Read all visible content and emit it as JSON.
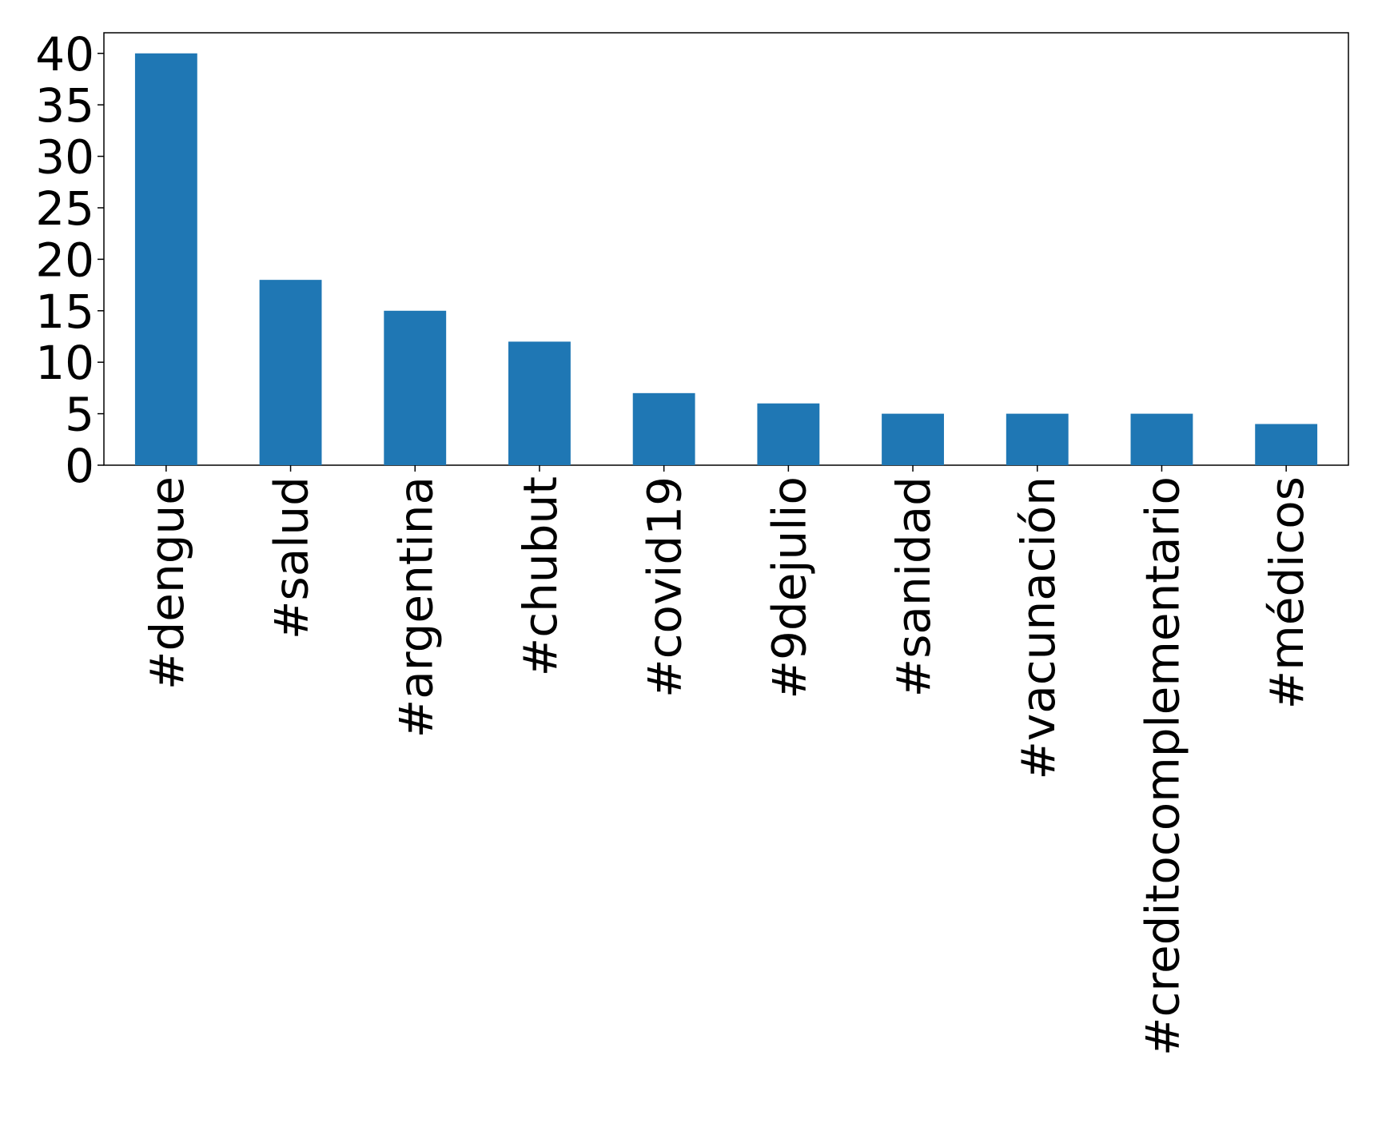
{
  "chart_data": {
    "type": "bar",
    "categories": [
      "#dengue",
      "#salud",
      "#argentina",
      "#chubut",
      "#covid19",
      "#9dejulio",
      "#sanidad",
      "#vacunación",
      "#creditocomplementario",
      "#médicos"
    ],
    "values": [
      40,
      18,
      15,
      12,
      7,
      6,
      5,
      5,
      5,
      4
    ],
    "color": "#1f77b4",
    "ylim": [
      0,
      42
    ],
    "yticks": [
      0,
      5,
      10,
      15,
      20,
      25,
      30,
      35,
      40
    ],
    "grid": false
  }
}
